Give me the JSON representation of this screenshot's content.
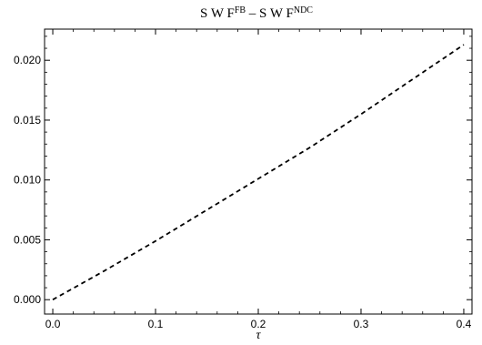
{
  "chart_data": {
    "type": "line",
    "title": {
      "part1": "S W F",
      "sup1": "FB",
      "middle": " – S W F",
      "sup2": "NDC"
    },
    "xlabel": "τ",
    "ylabel": "",
    "xlim": [
      -0.008,
      0.408
    ],
    "ylim": [
      -0.0012,
      0.0226
    ],
    "x_ticks": [
      0.0,
      0.1,
      0.2,
      0.3,
      0.4
    ],
    "x_tick_labels": [
      "0.0",
      "0.1",
      "0.2",
      "0.3",
      "0.4"
    ],
    "y_ticks": [
      0.0,
      0.005,
      0.01,
      0.015,
      0.02
    ],
    "y_tick_labels": [
      "0.000",
      "0.005",
      "0.010",
      "0.015",
      "0.020"
    ],
    "grid": false,
    "series": [
      {
        "line_style": "dashed",
        "color": "#000000",
        "x": [
          0.0,
          0.05,
          0.1,
          0.15,
          0.2,
          0.25,
          0.3,
          0.35,
          0.4
        ],
        "y": [
          0.0,
          0.0024,
          0.0049,
          0.0075,
          0.0101,
          0.0127,
          0.0155,
          0.0184,
          0.0213
        ]
      }
    ]
  }
}
